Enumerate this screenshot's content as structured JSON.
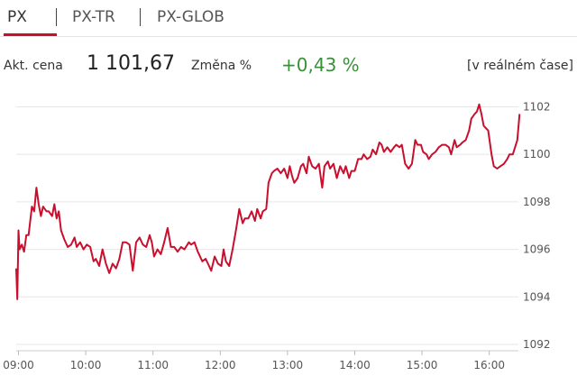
{
  "tabs": [
    {
      "label": "PX",
      "active": true
    },
    {
      "label": "PX-TR",
      "active": false
    },
    {
      "label": "PX-GLOB",
      "active": false
    }
  ],
  "stats": {
    "price_label": "Akt. cena",
    "price_value": "1 101,67",
    "change_label": "Změna %",
    "change_value": "+0,43 %",
    "realtime_label": "[v reálném čase]"
  },
  "colors": {
    "accent": "#c8102e",
    "line": "#c8102e",
    "positive": "#3a8f3a",
    "grid": "#e6e6e6"
  },
  "chart_data": {
    "type": "line",
    "title": "",
    "xlabel": "",
    "ylabel": "",
    "ylim": [
      1092,
      1102.7
    ],
    "xlim": [
      "08:58",
      "16:30"
    ],
    "y_ticks": [
      1092,
      1094,
      1096,
      1098,
      1100,
      1102
    ],
    "x_ticks": [
      "09:00",
      "10:00",
      "11:00",
      "12:00",
      "13:00",
      "14:00",
      "15:00",
      "16:00"
    ],
    "grid": "horizontal",
    "series": [
      {
        "values": [
          [
            "08:58",
            1095.2
          ],
          [
            "08:59",
            1093.9
          ],
          [
            "09:00",
            1096.8
          ],
          [
            "09:01",
            1096.0
          ],
          [
            "09:03",
            1096.2
          ],
          [
            "09:05",
            1095.9
          ],
          [
            "09:07",
            1096.6
          ],
          [
            "09:09",
            1096.6
          ],
          [
            "09:12",
            1097.8
          ],
          [
            "09:14",
            1097.6
          ],
          [
            "09:16",
            1098.6
          ],
          [
            "09:18",
            1097.9
          ],
          [
            "09:20",
            1097.4
          ],
          [
            "09:22",
            1097.8
          ],
          [
            "09:25",
            1097.6
          ],
          [
            "09:27",
            1097.6
          ],
          [
            "09:30",
            1097.4
          ],
          [
            "09:32",
            1097.9
          ],
          [
            "09:34",
            1097.3
          ],
          [
            "09:36",
            1097.6
          ],
          [
            "09:38",
            1096.8
          ],
          [
            "09:41",
            1096.4
          ],
          [
            "09:44",
            1096.1
          ],
          [
            "09:47",
            1096.2
          ],
          [
            "09:50",
            1096.5
          ],
          [
            "09:52",
            1096.1
          ],
          [
            "09:55",
            1096.3
          ],
          [
            "09:58",
            1096.0
          ],
          [
            "10:01",
            1096.2
          ],
          [
            "10:04",
            1096.1
          ],
          [
            "10:07",
            1095.5
          ],
          [
            "10:09",
            1095.6
          ],
          [
            "10:12",
            1095.3
          ],
          [
            "10:15",
            1096.0
          ],
          [
            "10:18",
            1095.4
          ],
          [
            "10:21",
            1095.0
          ],
          [
            "10:24",
            1095.4
          ],
          [
            "10:27",
            1095.2
          ],
          [
            "10:30",
            1095.6
          ],
          [
            "10:33",
            1096.3
          ],
          [
            "10:36",
            1096.3
          ],
          [
            "10:39",
            1096.2
          ],
          [
            "10:42",
            1095.1
          ],
          [
            "10:45",
            1096.3
          ],
          [
            "10:48",
            1096.5
          ],
          [
            "10:51",
            1096.2
          ],
          [
            "10:54",
            1096.1
          ],
          [
            "10:57",
            1096.6
          ],
          [
            "10:59",
            1096.3
          ],
          [
            "11:01",
            1095.7
          ],
          [
            "11:04",
            1096.0
          ],
          [
            "11:07",
            1095.8
          ],
          [
            "11:10",
            1096.3
          ],
          [
            "11:13",
            1096.9
          ],
          [
            "11:16",
            1096.1
          ],
          [
            "11:19",
            1096.1
          ],
          [
            "11:22",
            1095.9
          ],
          [
            "11:25",
            1096.1
          ],
          [
            "11:28",
            1096.0
          ],
          [
            "11:32",
            1096.3
          ],
          [
            "11:34",
            1096.2
          ],
          [
            "11:37",
            1096.3
          ],
          [
            "11:40",
            1095.9
          ],
          [
            "11:44",
            1095.5
          ],
          [
            "11:47",
            1095.6
          ],
          [
            "11:50",
            1095.3
          ],
          [
            "11:52",
            1095.1
          ],
          [
            "11:55",
            1095.7
          ],
          [
            "11:58",
            1095.4
          ],
          [
            "12:01",
            1095.3
          ],
          [
            "12:03",
            1096.0
          ],
          [
            "12:05",
            1095.5
          ],
          [
            "12:08",
            1095.3
          ],
          [
            "12:11",
            1096.0
          ],
          [
            "12:14",
            1096.8
          ],
          [
            "12:17",
            1097.7
          ],
          [
            "12:20",
            1097.1
          ],
          [
            "12:22",
            1097.3
          ],
          [
            "12:25",
            1097.3
          ],
          [
            "12:28",
            1097.6
          ],
          [
            "12:31",
            1097.2
          ],
          [
            "12:33",
            1097.7
          ],
          [
            "12:36",
            1097.3
          ],
          [
            "12:38",
            1097.6
          ],
          [
            "12:41",
            1097.7
          ],
          [
            "12:43",
            1098.8
          ],
          [
            "12:46",
            1099.2
          ],
          [
            "12:48",
            1099.3
          ],
          [
            "12:51",
            1099.4
          ],
          [
            "12:54",
            1099.2
          ],
          [
            "12:57",
            1099.4
          ],
          [
            "13:00",
            1099.0
          ],
          [
            "13:02",
            1099.5
          ],
          [
            "13:04",
            1099.1
          ],
          [
            "13:06",
            1098.8
          ],
          [
            "13:09",
            1099.0
          ],
          [
            "13:12",
            1099.5
          ],
          [
            "13:14",
            1099.6
          ],
          [
            "13:17",
            1099.2
          ],
          [
            "13:19",
            1099.9
          ],
          [
            "13:22",
            1099.5
          ],
          [
            "13:25",
            1099.4
          ],
          [
            "13:28",
            1099.6
          ],
          [
            "13:31",
            1098.6
          ],
          [
            "13:33",
            1099.5
          ],
          [
            "13:36",
            1099.7
          ],
          [
            "13:38",
            1099.4
          ],
          [
            "13:41",
            1099.6
          ],
          [
            "13:44",
            1099.0
          ],
          [
            "13:47",
            1099.5
          ],
          [
            "13:50",
            1099.2
          ],
          [
            "13:52",
            1099.5
          ],
          [
            "13:55",
            1099.0
          ],
          [
            "13:57",
            1099.3
          ],
          [
            "14:00",
            1099.3
          ],
          [
            "14:03",
            1099.8
          ],
          [
            "14:06",
            1099.8
          ],
          [
            "14:08",
            1100.0
          ],
          [
            "14:11",
            1099.8
          ],
          [
            "14:14",
            1099.9
          ],
          [
            "14:16",
            1100.2
          ],
          [
            "14:19",
            1100.0
          ],
          [
            "14:22",
            1100.5
          ],
          [
            "14:24",
            1100.4
          ],
          [
            "14:26",
            1100.1
          ],
          [
            "14:29",
            1100.3
          ],
          [
            "14:32",
            1100.1
          ],
          [
            "14:35",
            1100.3
          ],
          [
            "14:37",
            1100.4
          ],
          [
            "14:40",
            1100.3
          ],
          [
            "14:42",
            1100.4
          ],
          [
            "14:45",
            1099.6
          ],
          [
            "14:48",
            1099.4
          ],
          [
            "14:51",
            1099.6
          ],
          [
            "14:54",
            1100.6
          ],
          [
            "14:56",
            1100.4
          ],
          [
            "14:59",
            1100.4
          ],
          [
            "15:01",
            1100.1
          ],
          [
            "15:04",
            1100.0
          ],
          [
            "15:06",
            1099.8
          ],
          [
            "15:09",
            1100.0
          ],
          [
            "15:12",
            1100.1
          ],
          [
            "15:15",
            1100.3
          ],
          [
            "15:18",
            1100.4
          ],
          [
            "15:21",
            1100.4
          ],
          [
            "15:24",
            1100.3
          ],
          [
            "15:26",
            1100.0
          ],
          [
            "15:29",
            1100.6
          ],
          [
            "15:31",
            1100.3
          ],
          [
            "15:34",
            1100.4
          ],
          [
            "15:36",
            1100.5
          ],
          [
            "15:39",
            1100.6
          ],
          [
            "15:42",
            1101.0
          ],
          [
            "15:44",
            1101.5
          ],
          [
            "15:47",
            1101.7
          ],
          [
            "15:49",
            1101.8
          ],
          [
            "15:51",
            1102.1
          ],
          [
            "15:53",
            1101.7
          ],
          [
            "15:55",
            1101.2
          ],
          [
            "15:57",
            1101.1
          ],
          [
            "15:59",
            1101.0
          ],
          [
            "16:02",
            1100.0
          ],
          [
            "16:04",
            1099.5
          ],
          [
            "16:07",
            1099.4
          ],
          [
            "16:10",
            1099.5
          ],
          [
            "16:13",
            1099.6
          ],
          [
            "16:16",
            1099.8
          ],
          [
            "16:18",
            1100.0
          ],
          [
            "16:21",
            1100.0
          ],
          [
            "16:23",
            1100.3
          ],
          [
            "16:25",
            1100.6
          ],
          [
            "16:27",
            1101.7
          ]
        ]
      }
    ]
  }
}
